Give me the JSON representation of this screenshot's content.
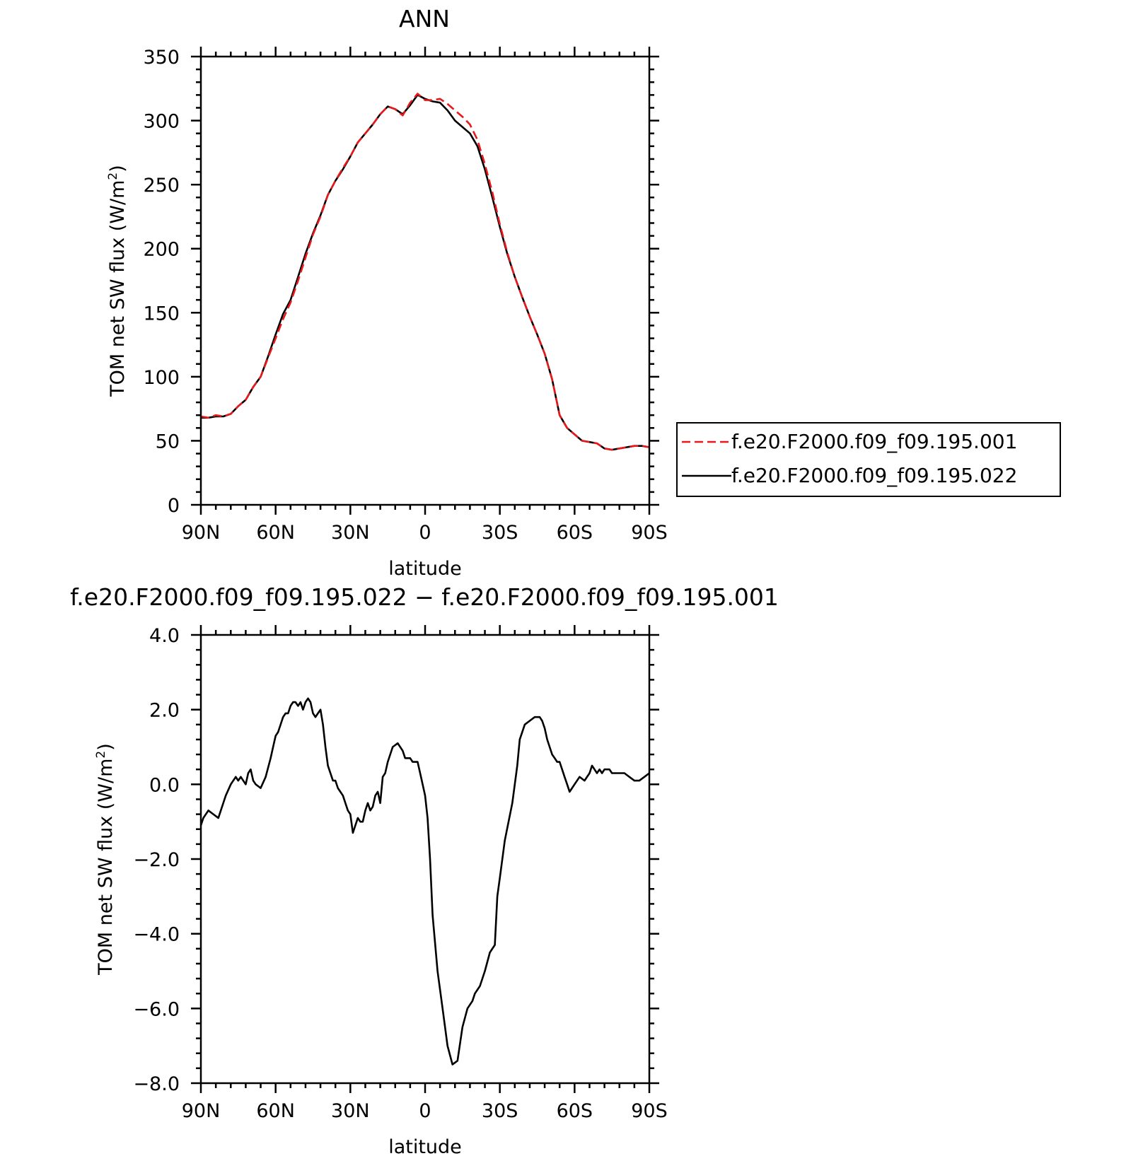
{
  "chart_data": [
    {
      "type": "line",
      "title": "ANN",
      "xlabel": "latitude",
      "ylabel_main": "TOM net SW flux (W/m",
      "ylabel_sup": "2",
      "ylabel_close": ")",
      "xlim": [
        90,
        -90
      ],
      "ylim": [
        0,
        350
      ],
      "x_ticks": [
        90,
        60,
        30,
        0,
        -30,
        -60,
        -90
      ],
      "x_tick_labels": [
        "90N",
        "60N",
        "30N",
        "0",
        "30S",
        "60S",
        "90S"
      ],
      "y_ticks": [
        0,
        50,
        100,
        150,
        200,
        250,
        300,
        350
      ],
      "y_tick_labels": [
        "0",
        "50",
        "100",
        "150",
        "200",
        "250",
        "300",
        "350"
      ],
      "legend_position": "right",
      "series": [
        {
          "name": "f.e20.F2000.f09_f09.195.001",
          "color": "#e8191c",
          "dash": "dashed",
          "x": [
            90,
            87,
            84,
            81,
            78,
            75,
            72,
            69,
            66,
            63,
            60,
            57,
            54,
            51,
            48,
            45,
            42,
            39,
            36,
            33,
            30,
            27,
            24,
            21,
            18,
            15,
            12,
            9,
            6,
            3,
            0,
            -3,
            -6,
            -9,
            -12,
            -15,
            -18,
            -21,
            -24,
            -27,
            -30,
            -33,
            -36,
            -39,
            -42,
            -45,
            -48,
            -51,
            -54,
            -57,
            -60,
            -63,
            -66,
            -69,
            -72,
            -75,
            -78,
            -81,
            -84,
            -87,
            -90
          ],
          "y": [
            69,
            68,
            70,
            69,
            71,
            77,
            82,
            92,
            100,
            115,
            130,
            145,
            158,
            175,
            193,
            211,
            225,
            242,
            253,
            263,
            272,
            283,
            290,
            297,
            305,
            311,
            309,
            304,
            314,
            321,
            316,
            316,
            317,
            313,
            308,
            303,
            297,
            285,
            266,
            244,
            219,
            197,
            178,
            162,
            147,
            133,
            118,
            98,
            70,
            60,
            55,
            50,
            49,
            48,
            44,
            43,
            44,
            45,
            46,
            46,
            45
          ],
          "y_note": ""
        },
        {
          "name": "f.e20.F2000.f09_f09.195.022",
          "color": "#000000",
          "dash": "solid",
          "x": [
            90,
            87,
            84,
            81,
            78,
            75,
            72,
            69,
            66,
            63,
            60,
            57,
            54,
            51,
            48,
            45,
            42,
            39,
            36,
            33,
            30,
            27,
            24,
            21,
            18,
            15,
            12,
            9,
            6,
            3,
            0,
            -3,
            -6,
            -9,
            -12,
            -15,
            -18,
            -21,
            -24,
            -27,
            -30,
            -33,
            -36,
            -39,
            -42,
            -45,
            -48,
            -51,
            -54,
            -57,
            -60,
            -63,
            -66,
            -69,
            -72,
            -75,
            -78,
            -81,
            -84,
            -87,
            -90
          ],
          "y": [
            68,
            68,
            69,
            69,
            71,
            77,
            82,
            92,
            100,
            116,
            133,
            149,
            160,
            178,
            196,
            212,
            226,
            242,
            253,
            262,
            272,
            283,
            290,
            297,
            305,
            311,
            309,
            305,
            312,
            320,
            317,
            315,
            314,
            308,
            300,
            295,
            290,
            280,
            262,
            240,
            217,
            196,
            178,
            162,
            147,
            133,
            118,
            98,
            70,
            60,
            55,
            50,
            49,
            48,
            44,
            43,
            44,
            45,
            46,
            46,
            45
          ]
        }
      ]
    },
    {
      "type": "line",
      "title": "f.e20.F2000.f09_f09.195.022 − f.e20.F2000.f09_f09.195.001",
      "xlabel": "latitude",
      "ylabel_main": "TOM net SW flux (W/m",
      "ylabel_sup": "2",
      "ylabel_close": ")",
      "xlim": [
        90,
        -90
      ],
      "ylim": [
        -8,
        4
      ],
      "x_ticks": [
        90,
        60,
        30,
        0,
        -30,
        -60,
        -90
      ],
      "x_tick_labels": [
        "90N",
        "60N",
        "30N",
        "0",
        "30S",
        "60S",
        "90S"
      ],
      "y_ticks": [
        4,
        2,
        0,
        -2,
        -4,
        -6,
        -8
      ],
      "y_tick_labels": [
        "4.0",
        "2.0",
        "0.0",
        "−2.0",
        "−4.0",
        "−6.0",
        "−8.0"
      ],
      "series": [
        {
          "color": "#000000",
          "dash": "solid",
          "x": [
            90,
            89,
            87,
            85,
            83,
            82,
            80,
            78,
            76,
            75,
            74,
            72,
            71,
            70,
            69,
            68,
            66,
            64,
            62,
            61,
            60,
            59,
            57,
            56,
            55,
            54,
            53,
            52,
            51,
            50,
            49,
            48,
            47,
            46,
            45,
            44,
            43,
            42,
            41,
            40,
            39,
            37,
            36,
            35,
            34,
            33,
            32,
            31,
            30,
            29,
            28,
            27,
            26,
            25,
            24,
            23,
            22,
            21,
            20,
            19,
            18,
            17,
            16,
            15,
            13,
            11,
            10,
            9,
            8,
            7,
            6,
            5,
            4,
            3,
            2,
            1,
            0,
            -1,
            -2,
            -3,
            -5,
            -7,
            -9,
            -11,
            -13,
            -15,
            -17,
            -19,
            -20,
            -21,
            -22,
            -24,
            -26,
            -28,
            -29,
            -30,
            -32,
            -35,
            -37,
            -38,
            -40,
            -42,
            -44,
            -46,
            -47,
            -48,
            -49,
            -50,
            -51,
            -52,
            -53,
            -54,
            -55,
            -56,
            -57,
            -58,
            -59,
            -60,
            -62,
            -64,
            -66,
            -67,
            -68,
            -69,
            -70,
            -71,
            -72,
            -73,
            -74,
            -75,
            -76,
            -78,
            -80,
            -82,
            -84,
            -86,
            -88,
            -90
          ],
          "y": [
            -1.1,
            -0.9,
            -0.7,
            -0.8,
            -0.9,
            -0.7,
            -0.3,
            0.0,
            0.2,
            0.1,
            0.2,
            0.0,
            0.3,
            0.4,
            0.1,
            0.0,
            -0.1,
            0.2,
            0.7,
            1.0,
            1.3,
            1.4,
            1.8,
            1.9,
            1.9,
            2.1,
            2.2,
            2.2,
            2.1,
            2.2,
            2.0,
            2.2,
            2.3,
            2.2,
            1.9,
            1.8,
            1.9,
            2.0,
            1.6,
            1.0,
            0.5,
            0.1,
            0.1,
            -0.1,
            -0.2,
            -0.3,
            -0.5,
            -0.7,
            -0.8,
            -1.3,
            -1.1,
            -0.9,
            -1.0,
            -1.0,
            -0.7,
            -0.5,
            -0.7,
            -0.6,
            -0.3,
            -0.2,
            -0.5,
            0.2,
            0.3,
            0.6,
            1.0,
            1.1,
            1.0,
            0.9,
            0.7,
            0.7,
            0.7,
            0.6,
            0.6,
            0.6,
            0.3,
            0.0,
            -0.3,
            -0.9,
            -2.0,
            -3.5,
            -5.0,
            -6.0,
            -7.0,
            -7.5,
            -7.4,
            -6.5,
            -6.0,
            -5.8,
            -5.6,
            -5.5,
            -5.4,
            -5.0,
            -4.5,
            -4.3,
            -3.0,
            -2.5,
            -1.5,
            -0.5,
            0.5,
            1.2,
            1.6,
            1.7,
            1.8,
            1.8,
            1.7,
            1.5,
            1.2,
            1.0,
            0.8,
            0.7,
            0.6,
            0.6,
            0.4,
            0.2,
            0.0,
            -0.2,
            -0.1,
            0.0,
            0.2,
            0.1,
            0.3,
            0.5,
            0.4,
            0.3,
            0.4,
            0.3,
            0.4,
            0.4,
            0.4,
            0.3,
            0.3,
            0.3,
            0.3,
            0.2,
            0.1,
            0.1,
            0.2,
            0.3
          ]
        }
      ]
    }
  ]
}
